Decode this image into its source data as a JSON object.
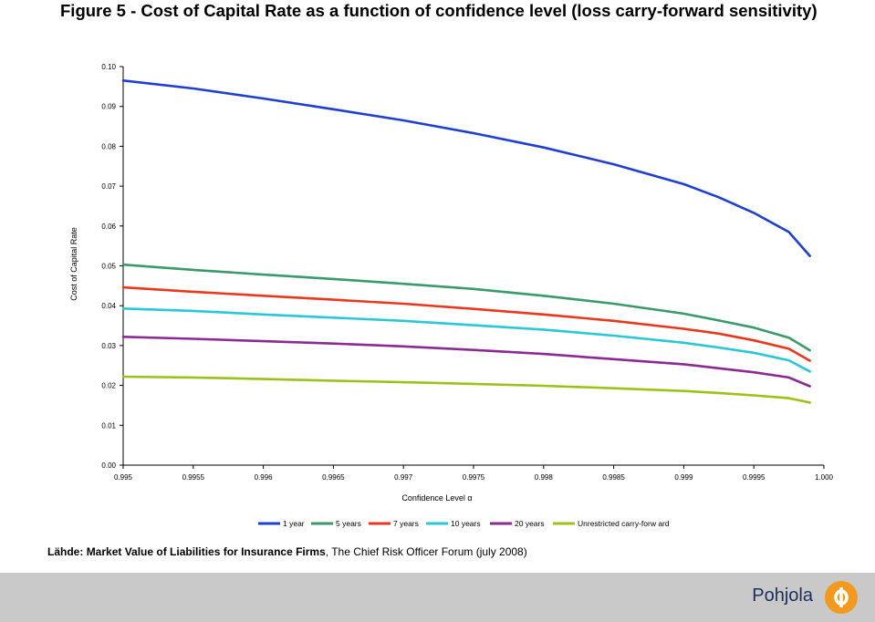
{
  "title": "Figure 5 - Cost of Capital Rate as a function of confidence level (loss carry-forward sensitivity)",
  "source": {
    "prefix": "Lähde:",
    "bold_text": "Market Value of Liabilities for Insurance Firms",
    "rest_text": ", The Chief Risk Officer Forum (july 2008)"
  },
  "footer": {
    "brand": "Pohjola",
    "background": "#c9c9c9",
    "logo_color": "#f39a1e",
    "brand_color": "#1b2f5c"
  },
  "chart_data": {
    "type": "line",
    "title": "Figure 5 - Cost of Capital Rate as a function of confidence level (loss carry-forward sensitivity)",
    "xlabel": "Confidence Level α",
    "ylabel": "Cost of Capital Rate",
    "xlim": [
      0.995,
      1.0
    ],
    "ylim": [
      0.0,
      0.1
    ],
    "x_ticks": [
      "0.995",
      "0.9955",
      "0.996",
      "0.9965",
      "0.997",
      "0.9975",
      "0.998",
      "0.9985",
      "0.999",
      "0.9995",
      "1.000"
    ],
    "y_ticks": [
      "0.00",
      "0.01",
      "0.02",
      "0.03",
      "0.04",
      "0.05",
      "0.06",
      "0.07",
      "0.08",
      "0.09",
      "0.10"
    ],
    "grid": false,
    "legend": "bottom",
    "x": [
      0.995,
      0.9955,
      0.996,
      0.9965,
      0.997,
      0.9975,
      0.998,
      0.9985,
      0.999,
      0.99925,
      0.9995,
      0.99975,
      0.9999
    ],
    "series": [
      {
        "name": "1 year",
        "color": "#1f3fd0",
        "values": [
          0.0965,
          0.0945,
          0.092,
          0.0893,
          0.0865,
          0.0833,
          0.0797,
          0.0755,
          0.0705,
          0.0672,
          0.0633,
          0.0585,
          0.0525
        ]
      },
      {
        "name": "5 years",
        "color": "#3a9a6c",
        "values": [
          0.0503,
          0.049,
          0.0478,
          0.0467,
          0.0455,
          0.0442,
          0.0425,
          0.0405,
          0.038,
          0.0363,
          0.0345,
          0.032,
          0.0288
        ]
      },
      {
        "name": "7 years",
        "color": "#e8381e",
        "values": [
          0.0446,
          0.0435,
          0.0425,
          0.0415,
          0.0405,
          0.0392,
          0.0378,
          0.0362,
          0.0342,
          0.033,
          0.0313,
          0.0292,
          0.0262
        ]
      },
      {
        "name": "10 years",
        "color": "#2cc7d6",
        "values": [
          0.0393,
          0.0387,
          0.0378,
          0.037,
          0.0362,
          0.0351,
          0.034,
          0.0325,
          0.0307,
          0.0295,
          0.0282,
          0.0263,
          0.0235
        ]
      },
      {
        "name": "20 years",
        "color": "#8a2a92",
        "values": [
          0.0322,
          0.0317,
          0.0311,
          0.0305,
          0.0298,
          0.0289,
          0.0279,
          0.0266,
          0.0253,
          0.0243,
          0.0233,
          0.022,
          0.0198
        ]
      },
      {
        "name": "Unrestricted carry-forw ard",
        "color": "#9bc11a",
        "values": [
          0.0222,
          0.022,
          0.0216,
          0.0212,
          0.0208,
          0.0204,
          0.0199,
          0.0193,
          0.0186,
          0.0181,
          0.0175,
          0.0168,
          0.0157
        ]
      }
    ]
  }
}
